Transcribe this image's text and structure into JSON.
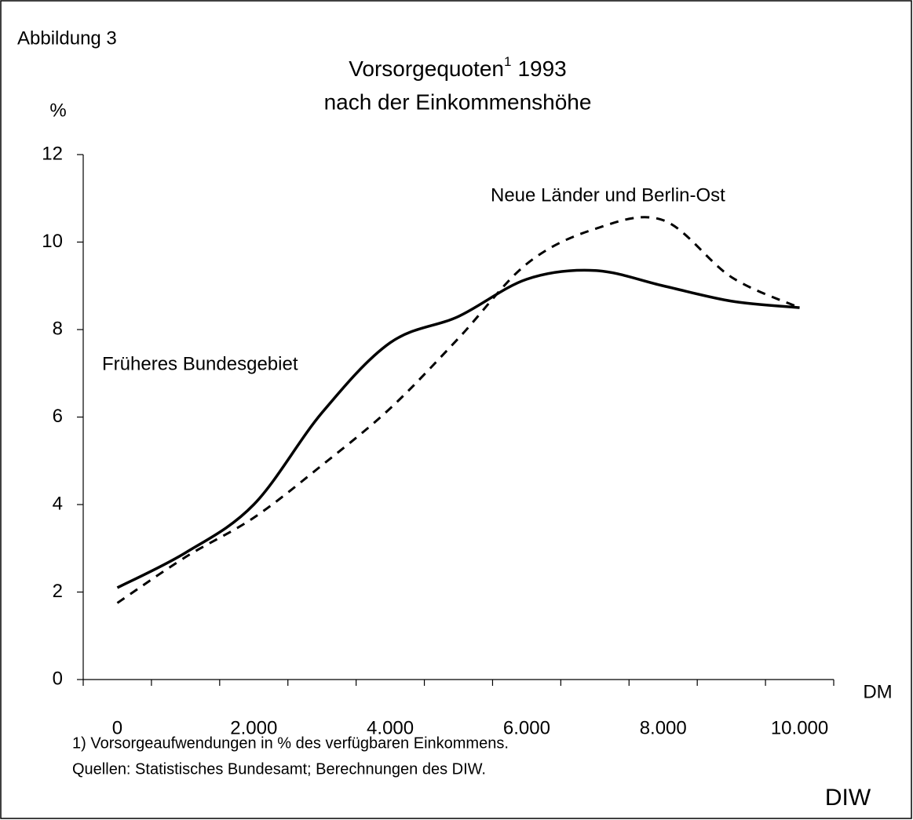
{
  "chart_data": {
    "type": "line",
    "figure_label": "Abbildung 3",
    "title_parts": [
      "Vorsorgequoten",
      "1",
      "1993"
    ],
    "subtitle": "nach der Einkommenshöhe",
    "ylabel": "%",
    "xlabel": "DM",
    "x": [
      0,
      1000,
      2000,
      3000,
      4000,
      5000,
      6000,
      7000,
      8000,
      9000,
      10000
    ],
    "series": [
      {
        "name": "Früheres Bundesgebiet",
        "color": "#000000",
        "dashed": false,
        "values": [
          2.1,
          2.9,
          4.0,
          6.1,
          7.7,
          8.3,
          9.15,
          9.35,
          9.0,
          8.65,
          8.5
        ]
      },
      {
        "name": "Neue Länder und Berlin-Ost",
        "color": "#000000",
        "dashed": true,
        "values": [
          1.75,
          2.8,
          3.7,
          4.9,
          6.2,
          7.8,
          9.5,
          10.3,
          10.5,
          9.2,
          8.5
        ]
      }
    ],
    "xlim": [
      -500,
      10500
    ],
    "xticks": [
      {
        "value": 0,
        "label": "0"
      },
      {
        "value": 2000,
        "label": "2.000"
      },
      {
        "value": 4000,
        "label": "4.000"
      },
      {
        "value": 6000,
        "label": "6.000"
      },
      {
        "value": 8000,
        "label": "8.000"
      },
      {
        "value": 10000,
        "label": "10.000"
      }
    ],
    "xminorticks": [
      -500,
      500,
      1500,
      2500,
      3500,
      4500,
      5500,
      6500,
      7500,
      8500,
      9500,
      10500
    ],
    "ylim": [
      0,
      12
    ],
    "yticks": [
      0,
      2,
      4,
      6,
      8,
      10,
      12
    ],
    "footnotes": [
      "1) Vorsorgeaufwendungen in % des verfügbaren Einkommens.",
      "Quellen: Statistisches Bundesamt; Berechnungen des DIW."
    ],
    "source": "DIW"
  }
}
